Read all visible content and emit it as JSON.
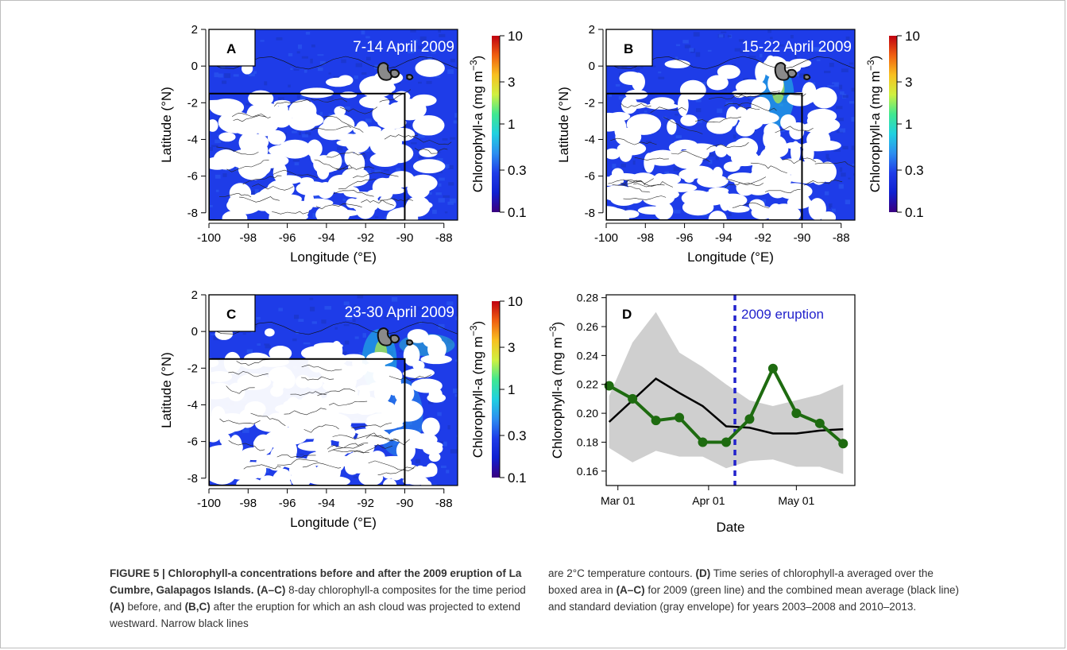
{
  "figure": {
    "maps": [
      {
        "panel": "A",
        "date": "7-14 April 2009"
      },
      {
        "panel": "B",
        "date": "15-22 April 2009"
      },
      {
        "panel": "C",
        "date": "23-30 April 2009"
      }
    ],
    "map_axes": {
      "xlabel": "Longitude (°E)",
      "ylabel": "Latitude (°N)",
      "xticks": [
        "-100",
        "-98",
        "-96",
        "-94",
        "-92",
        "-90",
        "-88"
      ],
      "yticks": [
        "2",
        "0",
        "-2",
        "-4",
        "-6",
        "-8"
      ],
      "xlim": [
        -100,
        -87.3
      ],
      "ylim": [
        -8.4,
        2
      ],
      "box": {
        "lon": [
          -100,
          -90
        ],
        "lat": [
          -8.4,
          -1.5
        ]
      }
    },
    "colorbar": {
      "label": "Chlorophyll-a (mg m",
      "label_exp": "−3",
      "label_close": ")",
      "ticks": [
        "10",
        "3",
        "1",
        "0.3",
        "0.1"
      ],
      "tick_values": [
        10,
        3,
        1,
        0.3,
        0.1
      ],
      "colors": [
        "#3a0080",
        "#1020d0",
        "#1e3ce8",
        "#2c8ef0",
        "#20d0e0",
        "#40e890",
        "#d0f040",
        "#f8c020",
        "#f06010",
        "#c00010"
      ]
    },
    "colors": {
      "ocean": "#1e3ce8",
      "cloud": "#ffffff",
      "land": "#8a8a8a",
      "series_2009": "#1e6b10",
      "mean": "#000000",
      "envelope": "#cfcfcf",
      "eruption": "#2222cc"
    }
  },
  "chart_data": {
    "type": "line",
    "panel": "D",
    "xlabel": "Date",
    "ylabel": "Chlorophyll-a (mg m",
    "ylabel_exp": "−3",
    "ylabel_close": ")",
    "ylim": [
      0.15,
      0.282
    ],
    "yticks": [
      "0.16",
      "0.18",
      "0.20",
      "0.22",
      "0.24",
      "0.26",
      "0.28"
    ],
    "ytick_values": [
      0.16,
      0.18,
      0.2,
      0.22,
      0.24,
      0.26,
      0.28
    ],
    "xlim": [
      "2009-02-25",
      "2009-05-21"
    ],
    "xticks": [
      "Mar 01",
      "Apr 01",
      "May 01"
    ],
    "xtick_dates": [
      "2009-03-01",
      "2009-04-01",
      "2009-05-01"
    ],
    "annotation": "2009 eruption",
    "eruption_date": "2009-04-10",
    "series": [
      {
        "x": [
          "2009-02-26",
          "2009-03-06",
          "2009-03-14",
          "2009-03-22",
          "2009-03-30",
          "2009-04-07",
          "2009-04-15",
          "2009-04-23",
          "2009-05-01",
          "2009-05-09",
          "2009-05-17"
        ],
        "values": [
          0.219,
          0.21,
          0.195,
          0.197,
          0.18,
          0.18,
          0.196,
          0.231,
          0.2,
          0.193,
          0.179
        ]
      },
      {
        "x": [
          "2009-02-26",
          "2009-03-14",
          "2009-03-22",
          "2009-03-30",
          "2009-04-07",
          "2009-04-15",
          "2009-04-23",
          "2009-05-01",
          "2009-05-09",
          "2009-05-17"
        ],
        "values": [
          0.194,
          0.224,
          0.214,
          0.205,
          0.191,
          0.19,
          0.186,
          0.186,
          0.188,
          0.189
        ]
      },
      {
        "type": "area",
        "x": [
          "2009-02-26",
          "2009-03-06",
          "2009-03-14",
          "2009-03-22",
          "2009-03-30",
          "2009-04-07",
          "2009-04-15",
          "2009-04-23",
          "2009-05-01",
          "2009-05-09",
          "2009-05-17"
        ],
        "upper": [
          0.212,
          0.249,
          0.27,
          0.242,
          0.232,
          0.22,
          0.209,
          0.205,
          0.209,
          0.213,
          0.22
        ],
        "lower": [
          0.176,
          0.166,
          0.174,
          0.17,
          0.17,
          0.162,
          0.167,
          0.168,
          0.163,
          0.163,
          0.158
        ]
      }
    ]
  },
  "caption": {
    "title": "FIGURE 5 | Chlorophyll-a concentrations before and after the 2009 eruption of La Cumbre, Galapagos Islands.",
    "s1_ref": "(A–C)",
    "s1": " 8-day chlorophyll-a composites for the time period ",
    "s2_ref": "(A)",
    "s2": " before, and ",
    "s3_ref": "(B,C)",
    "s3": " after the eruption for which an ash cloud was projected to extend westward. Narrow black lines are 2°C temperature contours. ",
    "s4_ref": "(D)",
    "s4": " Time series of chlorophyll-a averaged over the boxed area in ",
    "s5_ref": "(A–C)",
    "s5": " for 2009 (green line) and the combined mean average (black line) and standard deviation (gray envelope) for years 2003–2008 and 2010–2013."
  }
}
